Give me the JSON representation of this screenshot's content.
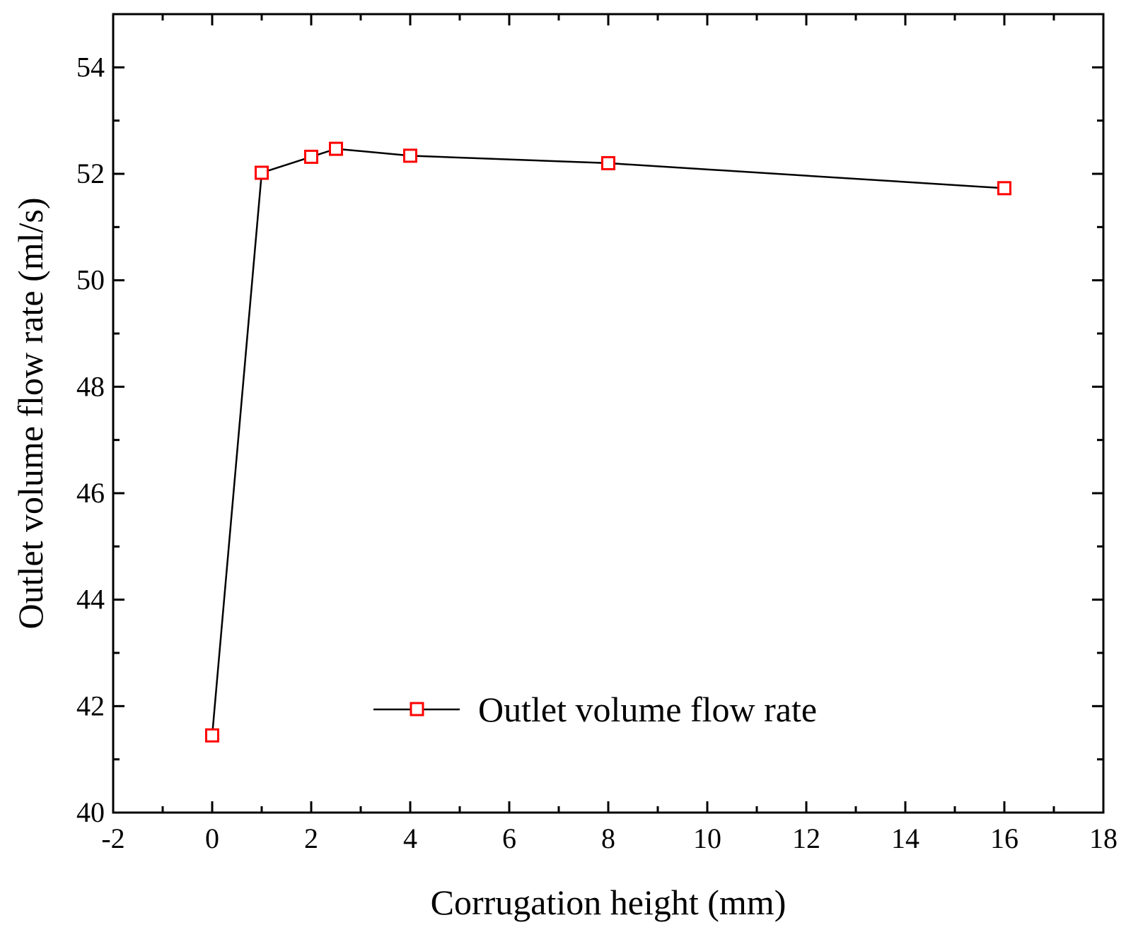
{
  "chart_data": {
    "type": "line",
    "title": "",
    "xlabel": "Corrugation height (mm)",
    "ylabel": "Outlet volume flow rate (ml/s)",
    "xlim": [
      -2,
      18
    ],
    "ylim": [
      40,
      55
    ],
    "x_ticks": [
      -2,
      0,
      2,
      4,
      6,
      8,
      10,
      12,
      14,
      16,
      18
    ],
    "y_ticks": [
      40,
      42,
      44,
      46,
      48,
      50,
      52,
      54
    ],
    "x_minor_step": 1,
    "y_minor_step": 1,
    "grid": false,
    "legend_position": "lower-center",
    "series": [
      {
        "name": "Outlet volume flow rate",
        "x": [
          0,
          1,
          2,
          2.5,
          4,
          8,
          16
        ],
        "values": [
          41.45,
          52.02,
          52.32,
          52.47,
          52.34,
          52.2,
          51.73
        ],
        "line_color": "#000000",
        "marker": "open-square",
        "marker_color": "#ff0000"
      }
    ]
  }
}
